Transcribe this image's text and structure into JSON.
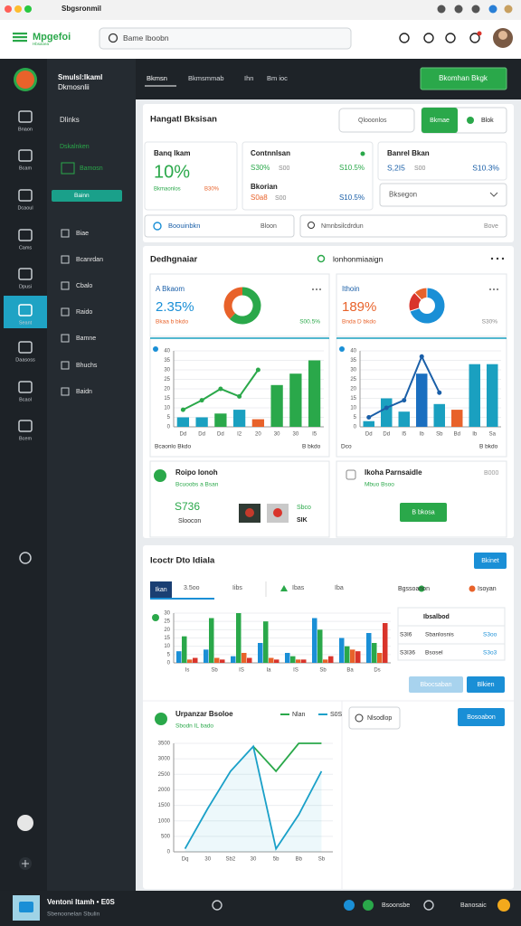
{
  "window": {
    "title": "Sbgsronmil"
  },
  "header": {
    "logo": "Mpgefoi",
    "logo_sub": "Hbsaoea",
    "search": "Bame Iboobn"
  },
  "rail": {
    "items": [
      "Bnaon",
      "Bcam",
      "Dcaoul",
      "Cams",
      "Dpusi",
      "Seant",
      "Daasoss",
      "Bcaol",
      "Bcem"
    ]
  },
  "nav": {
    "title": "Smulsl:Ikaml",
    "subtitle": "Dkmosnlii",
    "section": "Dlinks",
    "group": "Dskalnken",
    "group_item": "Bamosn",
    "active": "Bainn",
    "items": [
      "Biae",
      "Bcanrdan",
      "Cbalo",
      "Raido",
      "Bamne",
      "Bhuchs",
      "Baidn"
    ]
  },
  "topbar": {
    "tabs": [
      "Bkmsn",
      "Bkmsmmab",
      "Ihn",
      "Bm ioc"
    ],
    "button": "Bkomhan Bkgk"
  },
  "overview": {
    "title": "Hangatl Bksisan",
    "filter": "Qlooonlos",
    "toggle": [
      "Bkmae",
      "Blok"
    ],
    "kpi1": {
      "label": "Banq Ikam",
      "value": "10%",
      "note": "Bkmaonlos",
      "badge": "B30%"
    },
    "kpi2": {
      "label": "Contnnlsan",
      "value": "S30%",
      "note": "S00",
      "delta": "S10.5%",
      "label2": "Bkorian",
      "value2": "S0a8",
      "note2": "S00",
      "delta2": "S10.5%"
    },
    "kpi3": {
      "label": "Banrel Bkan",
      "value": "S,2I5",
      "note": "S00",
      "delta": "S10.3%"
    },
    "select": "Bksegon",
    "links": "Boouinbkn",
    "links_menu": "Bloon",
    "search": "Nmnbsilcdrdun",
    "search_menu": "Bove"
  },
  "analytics": {
    "title": "Dedhgnaiar",
    "search": "lonhonmiaaign",
    "a": {
      "title": "A Bkaom",
      "value": "2.35%",
      "note": "Bkaa b bkdo",
      "delta": "S00.5%",
      "donut": {
        "type": "pie",
        "values": [
          62,
          38
        ],
        "colors": [
          "#2aa84a",
          "#e8622a"
        ]
      },
      "chart": {
        "type": "bar",
        "categories": [
          "Dd",
          "Dd",
          "Dd",
          "I2",
          "20",
          "30",
          "30",
          "I5"
        ],
        "values": [
          5,
          5,
          7,
          9,
          4,
          22,
          28,
          35
        ],
        "colors": [
          "#1aa0c0",
          "#1aa0c0",
          "#2aa84a",
          "#1aa0c0",
          "#e8622a",
          "#2aa84a",
          "#2aa84a",
          "#2aa84a"
        ],
        "line": {
          "values": [
            9,
            14,
            20,
            16,
            30,
            null,
            null,
            null
          ],
          "color": "#2aa84a"
        },
        "ylim": [
          0,
          40
        ],
        "yticks": [
          0,
          5,
          10,
          15,
          20,
          25,
          30,
          35,
          40
        ]
      },
      "caption": "Bcaonlo Bkdo",
      "caption_right": "B bkdo"
    },
    "b": {
      "title": "Ithoin",
      "value": "189%",
      "note": "Bnda D bkdo",
      "delta": "S30%",
      "donut": {
        "type": "pie",
        "values": [
          70,
          18,
          12
        ],
        "colors": [
          "#1a8fd6",
          "#d9342b",
          "#e8622a"
        ]
      },
      "chart": {
        "type": "bar",
        "categories": [
          "Dd",
          "Dd",
          "I5",
          "Ib",
          "Sb",
          "Bd",
          "Ib",
          "Sa"
        ],
        "values": [
          3,
          15,
          8,
          28,
          12,
          9,
          33,
          33
        ],
        "colors": [
          "#1aa0c0",
          "#1aa0c0",
          "#1aa0c0",
          "#1a6fc0",
          "#1aa0c0",
          "#e8622a",
          "#1aa0c0",
          "#1aa0c0"
        ],
        "line": {
          "values": [
            5,
            10,
            14,
            37,
            18,
            null,
            null,
            null
          ],
          "color": "#1a5fa8"
        },
        "ylim": [
          0,
          40
        ],
        "yticks": [
          0,
          5,
          10,
          15,
          20,
          25,
          30,
          35,
          40
        ]
      },
      "caption": "Dco",
      "caption_right": "B bkdo"
    }
  },
  "promo_a": {
    "title": "Roipo Ionoh",
    "sub": "Bcuoobs a Bsan",
    "value": "S736",
    "note": "Sloocon",
    "side": "Sbco",
    "side2": "SIK"
  },
  "promo_b": {
    "title": "Ikoha Parnsaidle",
    "sub": "Mbuo Bsoo",
    "badge": "B000",
    "button": "B bkosa"
  },
  "report": {
    "title": "Icoctr Dto Idiala",
    "button": "Bkinet",
    "tabs": [
      "Ikan",
      "3.5oo",
      "Iibs",
      "Ibas",
      "Iba"
    ],
    "chart": {
      "type": "bar",
      "categories": [
        "Is",
        "Sb",
        "IS",
        "Ia",
        "IS",
        "Sb",
        "Ba",
        "Ds"
      ],
      "series": [
        {
          "color": "#1a8fd6",
          "values": [
            7,
            8,
            4,
            12,
            6,
            27,
            15,
            18
          ]
        },
        {
          "name": "Bgssoarion",
          "color": "#2aa84a",
          "values": [
            16,
            27,
            30,
            25,
            4,
            20,
            10,
            12
          ]
        },
        {
          "name": "Isoyan",
          "color": "#e8622a",
          "values": [
            2,
            3,
            6,
            3,
            2,
            2,
            8,
            6
          ]
        },
        {
          "color": "#d9342b",
          "values": [
            3,
            2,
            3,
            2,
            2,
            4,
            7,
            24
          ]
        }
      ],
      "ylim": [
        0,
        30
      ],
      "yticks": [
        0,
        5,
        10,
        15,
        20,
        25,
        30
      ]
    },
    "table": {
      "header": "Ibsalbod",
      "rows": [
        [
          "S3I6",
          "Sbanlosnis",
          "S3oo"
        ],
        [
          "S3I36",
          "Bsosel",
          "S3o3"
        ]
      ]
    },
    "buttons": [
      "Bbocsaban",
      "Blkien"
    ]
  },
  "trend": {
    "title": "Urpanzar Bsoloe",
    "sub": "Sbodn IL bado",
    "chart": {
      "type": "line",
      "categories": [
        "Dq",
        "30",
        "Sb2",
        "30",
        "5b",
        "Bb",
        "Sb"
      ],
      "series": [
        {
          "name": "Nlan",
          "color": "#2aa84a",
          "values": [
            null,
            null,
            null,
            3400,
            2600,
            3500,
            3500
          ]
        },
        {
          "name": "S0S",
          "color": "#1aa0c8",
          "values": [
            100,
            1400,
            2600,
            3400,
            100,
            1200,
            2600
          ]
        }
      ],
      "ylim": [
        0,
        3500
      ],
      "yticks": [
        0,
        500,
        1000,
        1500,
        2000,
        2500,
        3000,
        3500
      ]
    }
  },
  "side": {
    "filter": "Nlsodlop",
    "button": "Bosoabon"
  },
  "footer": {
    "title": "Ventoni Itamh • E0S",
    "sub": "Sbenoonelan Sbulin",
    "status": "Bsoonsbe",
    "user": "Banosaic"
  }
}
